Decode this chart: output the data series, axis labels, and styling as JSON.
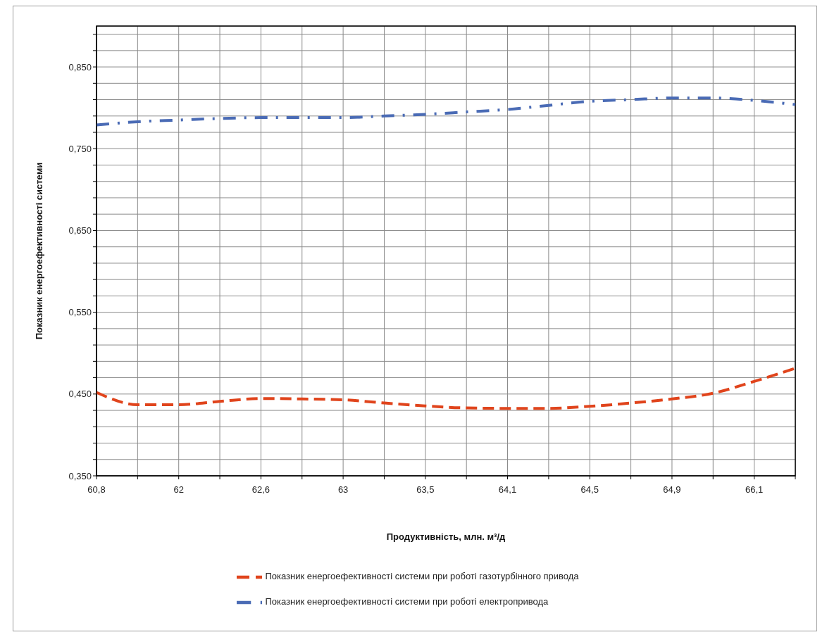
{
  "chart_data": {
    "type": "line",
    "xlabel": "Продуктивність,  млн. м³/д",
    "ylabel": "Показник енергоефективності системи",
    "categories": [
      "60,8",
      null,
      "62",
      null,
      "62,6",
      null,
      "63",
      null,
      "63,5",
      null,
      "64,1",
      null,
      "64,5",
      null,
      "64,9",
      null,
      "66,1",
      null
    ],
    "series": [
      {
        "name": "Показник енергоефективності системи при роботі газотурбінного привода",
        "color": "#e0441c",
        "line_style": "dashed",
        "values": [
          0.452,
          0.437,
          0.437,
          0.441,
          0.4445,
          0.444,
          0.443,
          0.439,
          0.4355,
          0.433,
          0.4325,
          0.4325,
          0.435,
          0.439,
          0.444,
          0.451,
          0.4655,
          0.4815
        ]
      },
      {
        "name": "Показник енергоефективності системи при роботі електропривода",
        "color": "#4a6bb5",
        "line_style": "dashdot",
        "values": [
          0.779,
          0.783,
          0.785,
          0.787,
          0.788,
          0.788,
          0.788,
          0.79,
          0.792,
          0.795,
          0.798,
          0.803,
          0.808,
          0.81,
          0.812,
          0.812,
          0.809,
          0.804
        ]
      }
    ],
    "ylim": [
      0.35,
      0.9
    ],
    "yticks": [
      {
        "value": 0.35,
        "label": "0,350"
      },
      {
        "value": 0.37,
        "label": null
      },
      {
        "value": 0.39,
        "label": null
      },
      {
        "value": 0.41,
        "label": null
      },
      {
        "value": 0.43,
        "label": null
      },
      {
        "value": 0.45,
        "label": "0,450"
      },
      {
        "value": 0.47,
        "label": null
      },
      {
        "value": 0.49,
        "label": null
      },
      {
        "value": 0.51,
        "label": null
      },
      {
        "value": 0.53,
        "label": null
      },
      {
        "value": 0.55,
        "label": "0,550"
      },
      {
        "value": 0.57,
        "label": null
      },
      {
        "value": 0.59,
        "label": null
      },
      {
        "value": 0.61,
        "label": null
      },
      {
        "value": 0.63,
        "label": null
      },
      {
        "value": 0.65,
        "label": "0,650"
      },
      {
        "value": 0.67,
        "label": null
      },
      {
        "value": 0.69,
        "label": null
      },
      {
        "value": 0.71,
        "label": null
      },
      {
        "value": 0.73,
        "label": null
      },
      {
        "value": 0.75,
        "label": "0,750"
      },
      {
        "value": 0.77,
        "label": null
      },
      {
        "value": 0.79,
        "label": null
      },
      {
        "value": 0.81,
        "label": null
      },
      {
        "value": 0.83,
        "label": null
      },
      {
        "value": 0.85,
        "label": "0,850"
      },
      {
        "value": 0.87,
        "label": null
      },
      {
        "value": 0.89,
        "label": null
      }
    ],
    "grid": true,
    "legend": "bottom"
  }
}
